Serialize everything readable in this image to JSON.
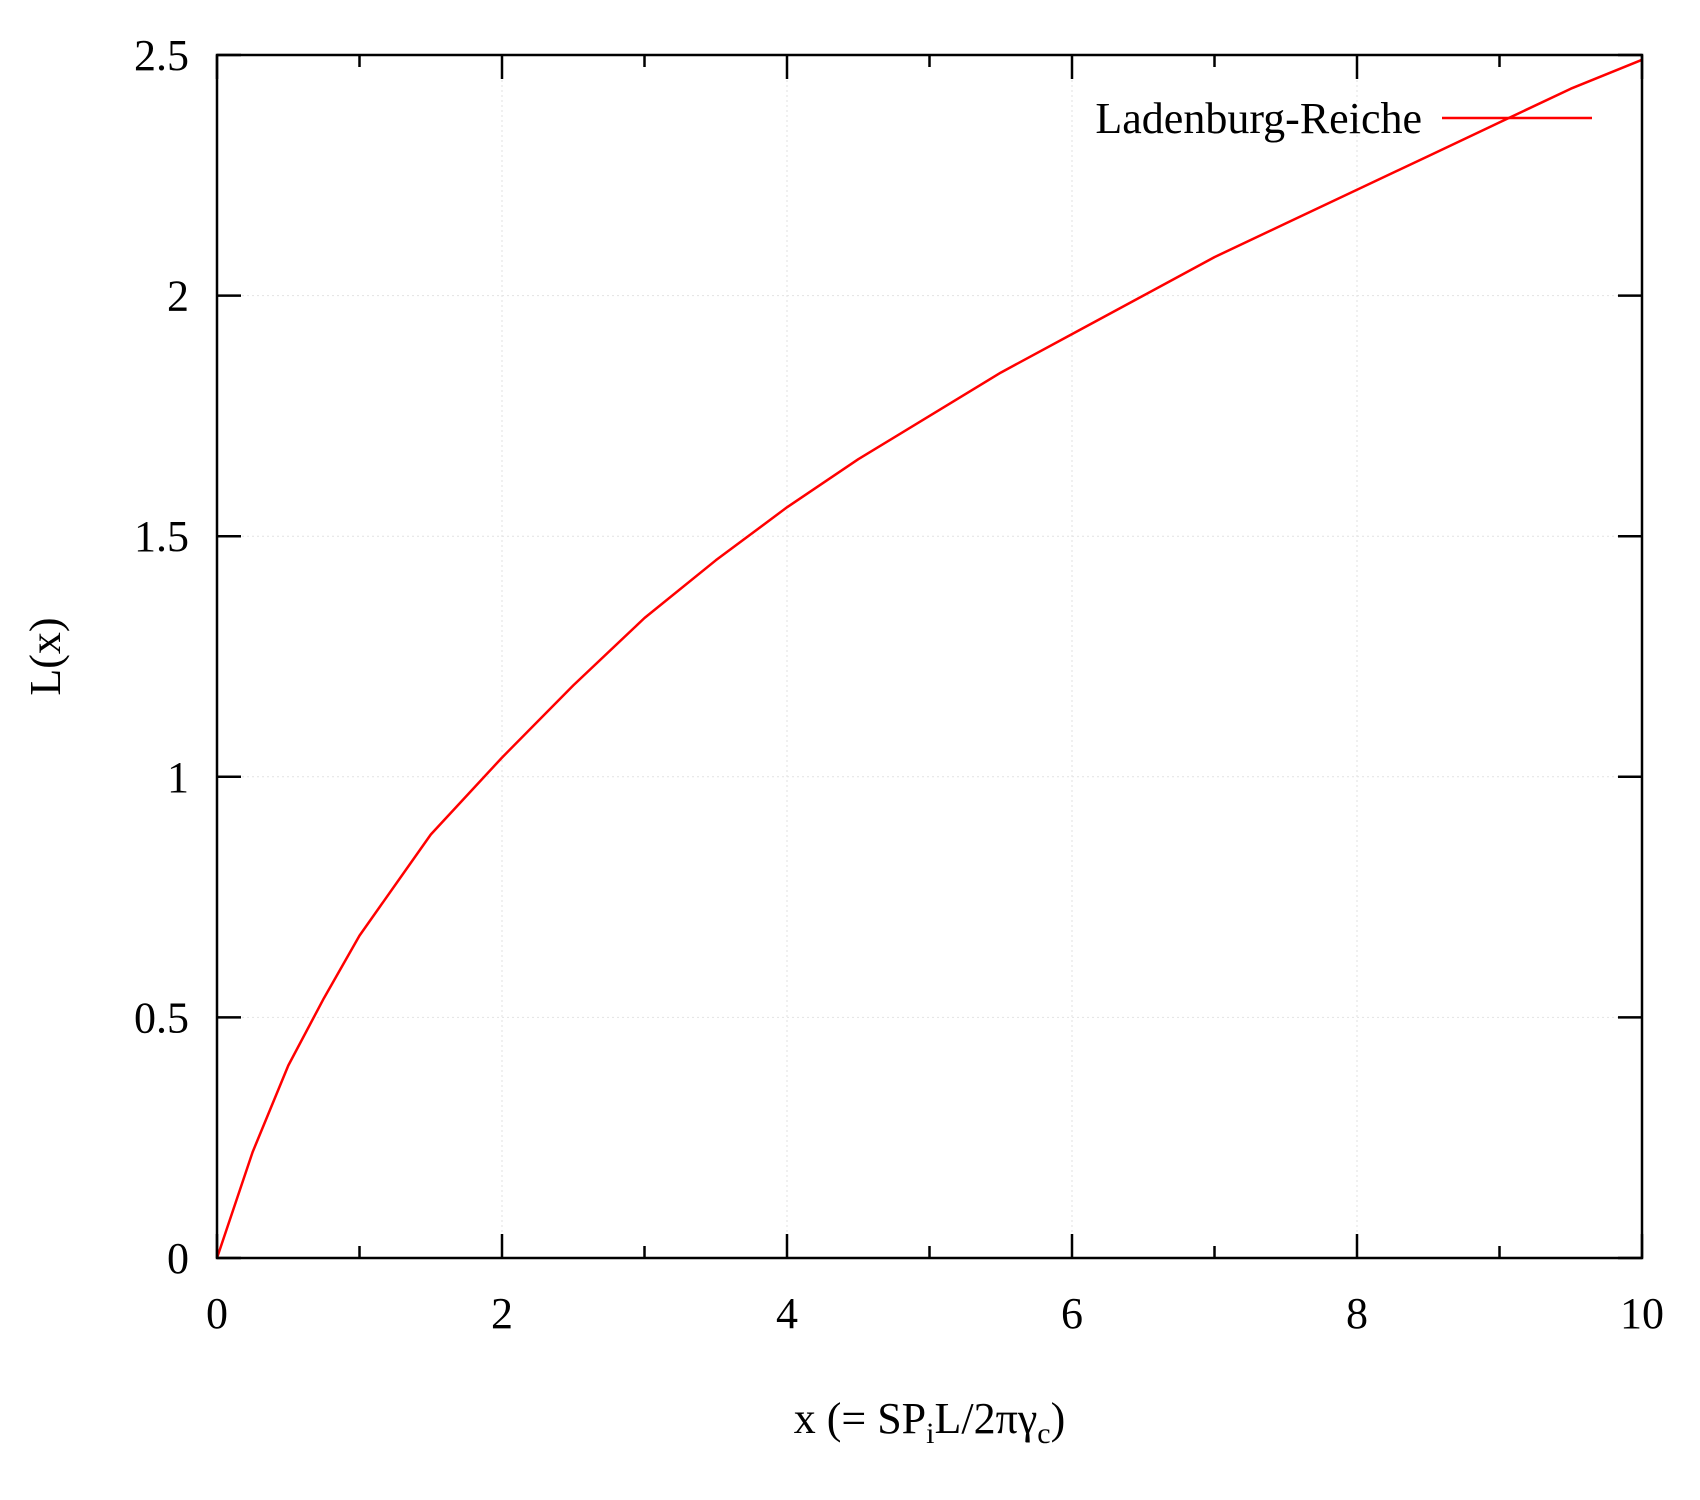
{
  "chart_data": {
    "type": "line",
    "title": "",
    "xlabel": "x (= SP",
    "xlabel_sub1": "i",
    "xlabel_mid": "L/2πγ",
    "xlabel_sub2": "c",
    "xlabel_end": ")",
    "ylabel": "L(x)",
    "xlim": [
      0,
      10
    ],
    "ylim": [
      0,
      2.5
    ],
    "xticks": [
      0,
      2,
      4,
      6,
      8,
      10
    ],
    "xtick_labels": [
      "0",
      "2",
      "4",
      "6",
      "8",
      "10"
    ],
    "yticks": [
      0,
      0.5,
      1,
      1.5,
      2,
      2.5
    ],
    "ytick_labels": [
      "0",
      "0.5",
      "1",
      "1.5",
      "2",
      "2.5"
    ],
    "x_minor_step": 1,
    "grid": true,
    "legend_position": "top-right",
    "series": [
      {
        "name": "Ladenburg-Reiche",
        "color": "#ff0000",
        "x": [
          0,
          0.25,
          0.5,
          0.75,
          1,
          1.5,
          2,
          2.5,
          3,
          3.5,
          4,
          4.5,
          5,
          5.5,
          6,
          6.5,
          7,
          7.5,
          8,
          8.5,
          9,
          9.5,
          10
        ],
        "y": [
          0,
          0.22,
          0.4,
          0.54,
          0.67,
          0.88,
          1.04,
          1.19,
          1.33,
          1.45,
          1.56,
          1.66,
          1.75,
          1.84,
          1.92,
          2.0,
          2.08,
          2.15,
          2.22,
          2.29,
          2.36,
          2.43,
          2.49
        ]
      }
    ]
  }
}
